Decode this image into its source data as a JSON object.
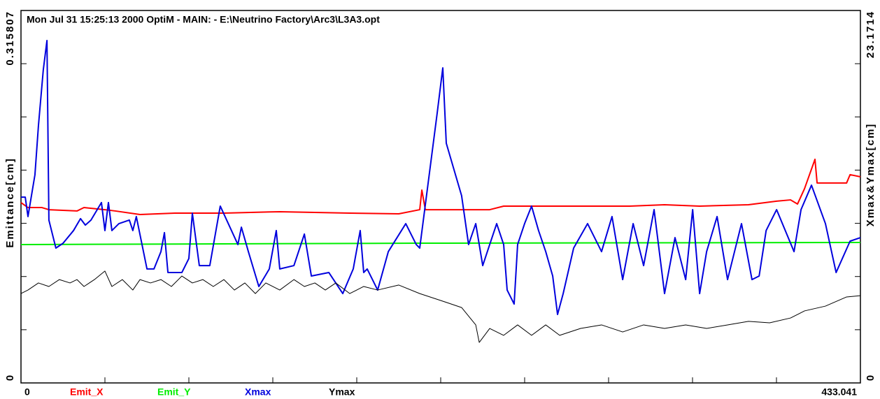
{
  "chart_data": {
    "type": "line",
    "title": "Mon Jul 31 15:25:13 2000    OptiM - MAIN: - E:\\Neutrino Factory\\Arc3\\L3A3.opt",
    "y_label": "Emittance[cm]",
    "y2_label": "Xmax&Ymax[cm]",
    "xlim": [
      0,
      433.041
    ],
    "xticks": [
      0,
      433.041
    ],
    "ylim": [
      0,
      0.315807
    ],
    "yticks": [
      0,
      0.315807
    ],
    "y2lim": [
      0,
      23.1714
    ],
    "y2ticks": [
      0,
      23.1714
    ],
    "x_divisions": 10,
    "y_divisions": 7,
    "series": [
      {
        "name": "Emit_X",
        "color": "#ff0000",
        "axis": "y",
        "width": 2,
        "x": [
          0,
          3.6,
          10.8,
          14.4,
          28.9,
          32.5,
          43.3,
          48.7,
          61.4,
          79.4,
          104.7,
          133.5,
          169.6,
          194.9,
          205.7,
          206.8,
          208.6,
          241.8,
          249.0,
          277.9,
          314.0,
          332.0,
          350.1,
          375.3,
          389.8,
          397.0,
          400.6,
          404.2,
          409.6,
          410.7,
          425.9,
          427.7,
          433.041
        ],
        "values": [
          0.1529,
          0.1487,
          0.1487,
          0.1469,
          0.1458,
          0.1487,
          0.1469,
          0.1458,
          0.1428,
          0.144,
          0.144,
          0.1452,
          0.144,
          0.1434,
          0.1469,
          0.1635,
          0.1469,
          0.1469,
          0.1499,
          0.1499,
          0.1499,
          0.1511,
          0.1499,
          0.1511,
          0.1541,
          0.1552,
          0.1517,
          0.1647,
          0.1896,
          0.1695,
          0.1695,
          0.1766,
          0.1748
        ]
      },
      {
        "name": "Emit_Y",
        "color": "#00ee00",
        "axis": "y",
        "width": 2,
        "x": [
          0,
          205.7,
          433.041
        ],
        "values": [
          0.1173,
          0.1185,
          0.1191
        ]
      },
      {
        "name": "Xmax",
        "color": "#0000dd",
        "axis": "y2",
        "width": 2,
        "x": [
          0,
          2.2,
          3.6,
          7.2,
          9.0,
          11.5,
          13.4,
          14.4,
          18.0,
          21.7,
          27.1,
          30.7,
          33.2,
          36.1,
          41.5,
          43.3,
          45.1,
          46.9,
          50.5,
          55.9,
          57.7,
          59.5,
          65.0,
          68.6,
          72.2,
          74.0,
          75.8,
          83.0,
          86.6,
          88.4,
          92.0,
          97.4,
          102.8,
          111.9,
          113.7,
          117.3,
          122.7,
          128.1,
          131.7,
          133.5,
          140.8,
          146.2,
          149.8,
          158.8,
          166.0,
          171.4,
          175.0,
          176.8,
          178.6,
          184.0,
          189.5,
          198.5,
          203.9,
          205.7,
          214.7,
          217.6,
          219.4,
          227.3,
          230.9,
          234.6,
          238.2,
          241.8,
          245.4,
          249.0,
          250.8,
          254.4,
          256.2,
          259.8,
          263.4,
          267.0,
          270.7,
          274.3,
          276.8,
          279.7,
          285.1,
          292.3,
          299.5,
          304.9,
          310.4,
          315.8,
          321.2,
          326.6,
          332.0,
          337.4,
          342.9,
          346.5,
          350.1,
          353.7,
          359.1,
          364.5,
          368.1,
          371.7,
          377.1,
          380.8,
          384.4,
          389.8,
          398.8,
          402.4,
          407.8,
          415.0,
          420.5,
          427.7,
          433.041
        ],
        "values": [
          11.56,
          11.56,
          10.35,
          12.95,
          16.0,
          19.47,
          21.3,
          10.13,
          8.39,
          8.69,
          9.48,
          10.22,
          9.82,
          10.13,
          11.22,
          9.48,
          11.22,
          9.48,
          9.91,
          10.13,
          9.48,
          10.35,
          7.09,
          7.09,
          8.17,
          9.35,
          6.87,
          6.87,
          7.74,
          10.56,
          7.3,
          7.3,
          11.0,
          8.61,
          9.69,
          8.17,
          6.0,
          7.09,
          9.48,
          7.09,
          7.3,
          9.26,
          6.65,
          6.87,
          5.56,
          7.09,
          9.48,
          6.87,
          7.09,
          5.78,
          8.17,
          9.91,
          8.61,
          8.39,
          16.78,
          19.6,
          14.91,
          11.65,
          8.61,
          9.91,
          7.3,
          8.61,
          9.91,
          8.61,
          5.78,
          4.91,
          8.61,
          9.91,
          11.0,
          9.48,
          8.17,
          6.65,
          4.26,
          5.56,
          8.39,
          9.91,
          8.17,
          10.35,
          6.43,
          9.91,
          7.3,
          10.78,
          5.56,
          9.04,
          6.43,
          10.78,
          5.56,
          8.17,
          10.35,
          6.43,
          8.17,
          9.91,
          6.43,
          6.65,
          9.48,
          10.78,
          8.17,
          10.78,
          12.3,
          9.91,
          6.87,
          8.82,
          9.04
        ]
      },
      {
        "name": "Ymax",
        "color": "#000000",
        "axis": "y2",
        "width": 1,
        "x": [
          0,
          3.6,
          9.0,
          14.4,
          19.8,
          25.3,
          28.9,
          32.5,
          37.9,
          43.3,
          46.9,
          52.3,
          57.7,
          61.4,
          66.8,
          72.2,
          77.6,
          83.0,
          88.4,
          93.8,
          99.2,
          104.7,
          110.1,
          115.5,
          120.9,
          126.3,
          133.5,
          140.8,
          146.2,
          151.6,
          157.0,
          162.4,
          169.6,
          176.8,
          184.0,
          194.9,
          205.7,
          216.5,
          227.3,
          234.6,
          236.4,
          241.8,
          249.0,
          256.2,
          263.4,
          270.7,
          277.9,
          288.7,
          299.5,
          310.4,
          321.2,
          332.0,
          342.9,
          353.7,
          364.5,
          375.3,
          386.2,
          397.0,
          404.2,
          415.0,
          425.9,
          433.041
        ],
        "values": [
          5.56,
          5.78,
          6.22,
          6.0,
          6.43,
          6.22,
          6.43,
          6.0,
          6.43,
          6.96,
          6.0,
          6.43,
          5.78,
          6.43,
          6.22,
          6.43,
          6.0,
          6.65,
          6.22,
          6.43,
          6.0,
          6.43,
          5.78,
          6.22,
          5.56,
          6.22,
          5.78,
          6.43,
          6.0,
          6.22,
          5.78,
          6.22,
          5.56,
          6.0,
          5.78,
          6.09,
          5.56,
          5.13,
          4.69,
          3.61,
          2.52,
          3.39,
          2.96,
          3.61,
          2.96,
          3.61,
          2.96,
          3.39,
          3.61,
          3.17,
          3.61,
          3.39,
          3.61,
          3.39,
          3.61,
          3.83,
          3.74,
          4.04,
          4.48,
          4.78,
          5.35,
          5.43
        ]
      }
    ]
  }
}
